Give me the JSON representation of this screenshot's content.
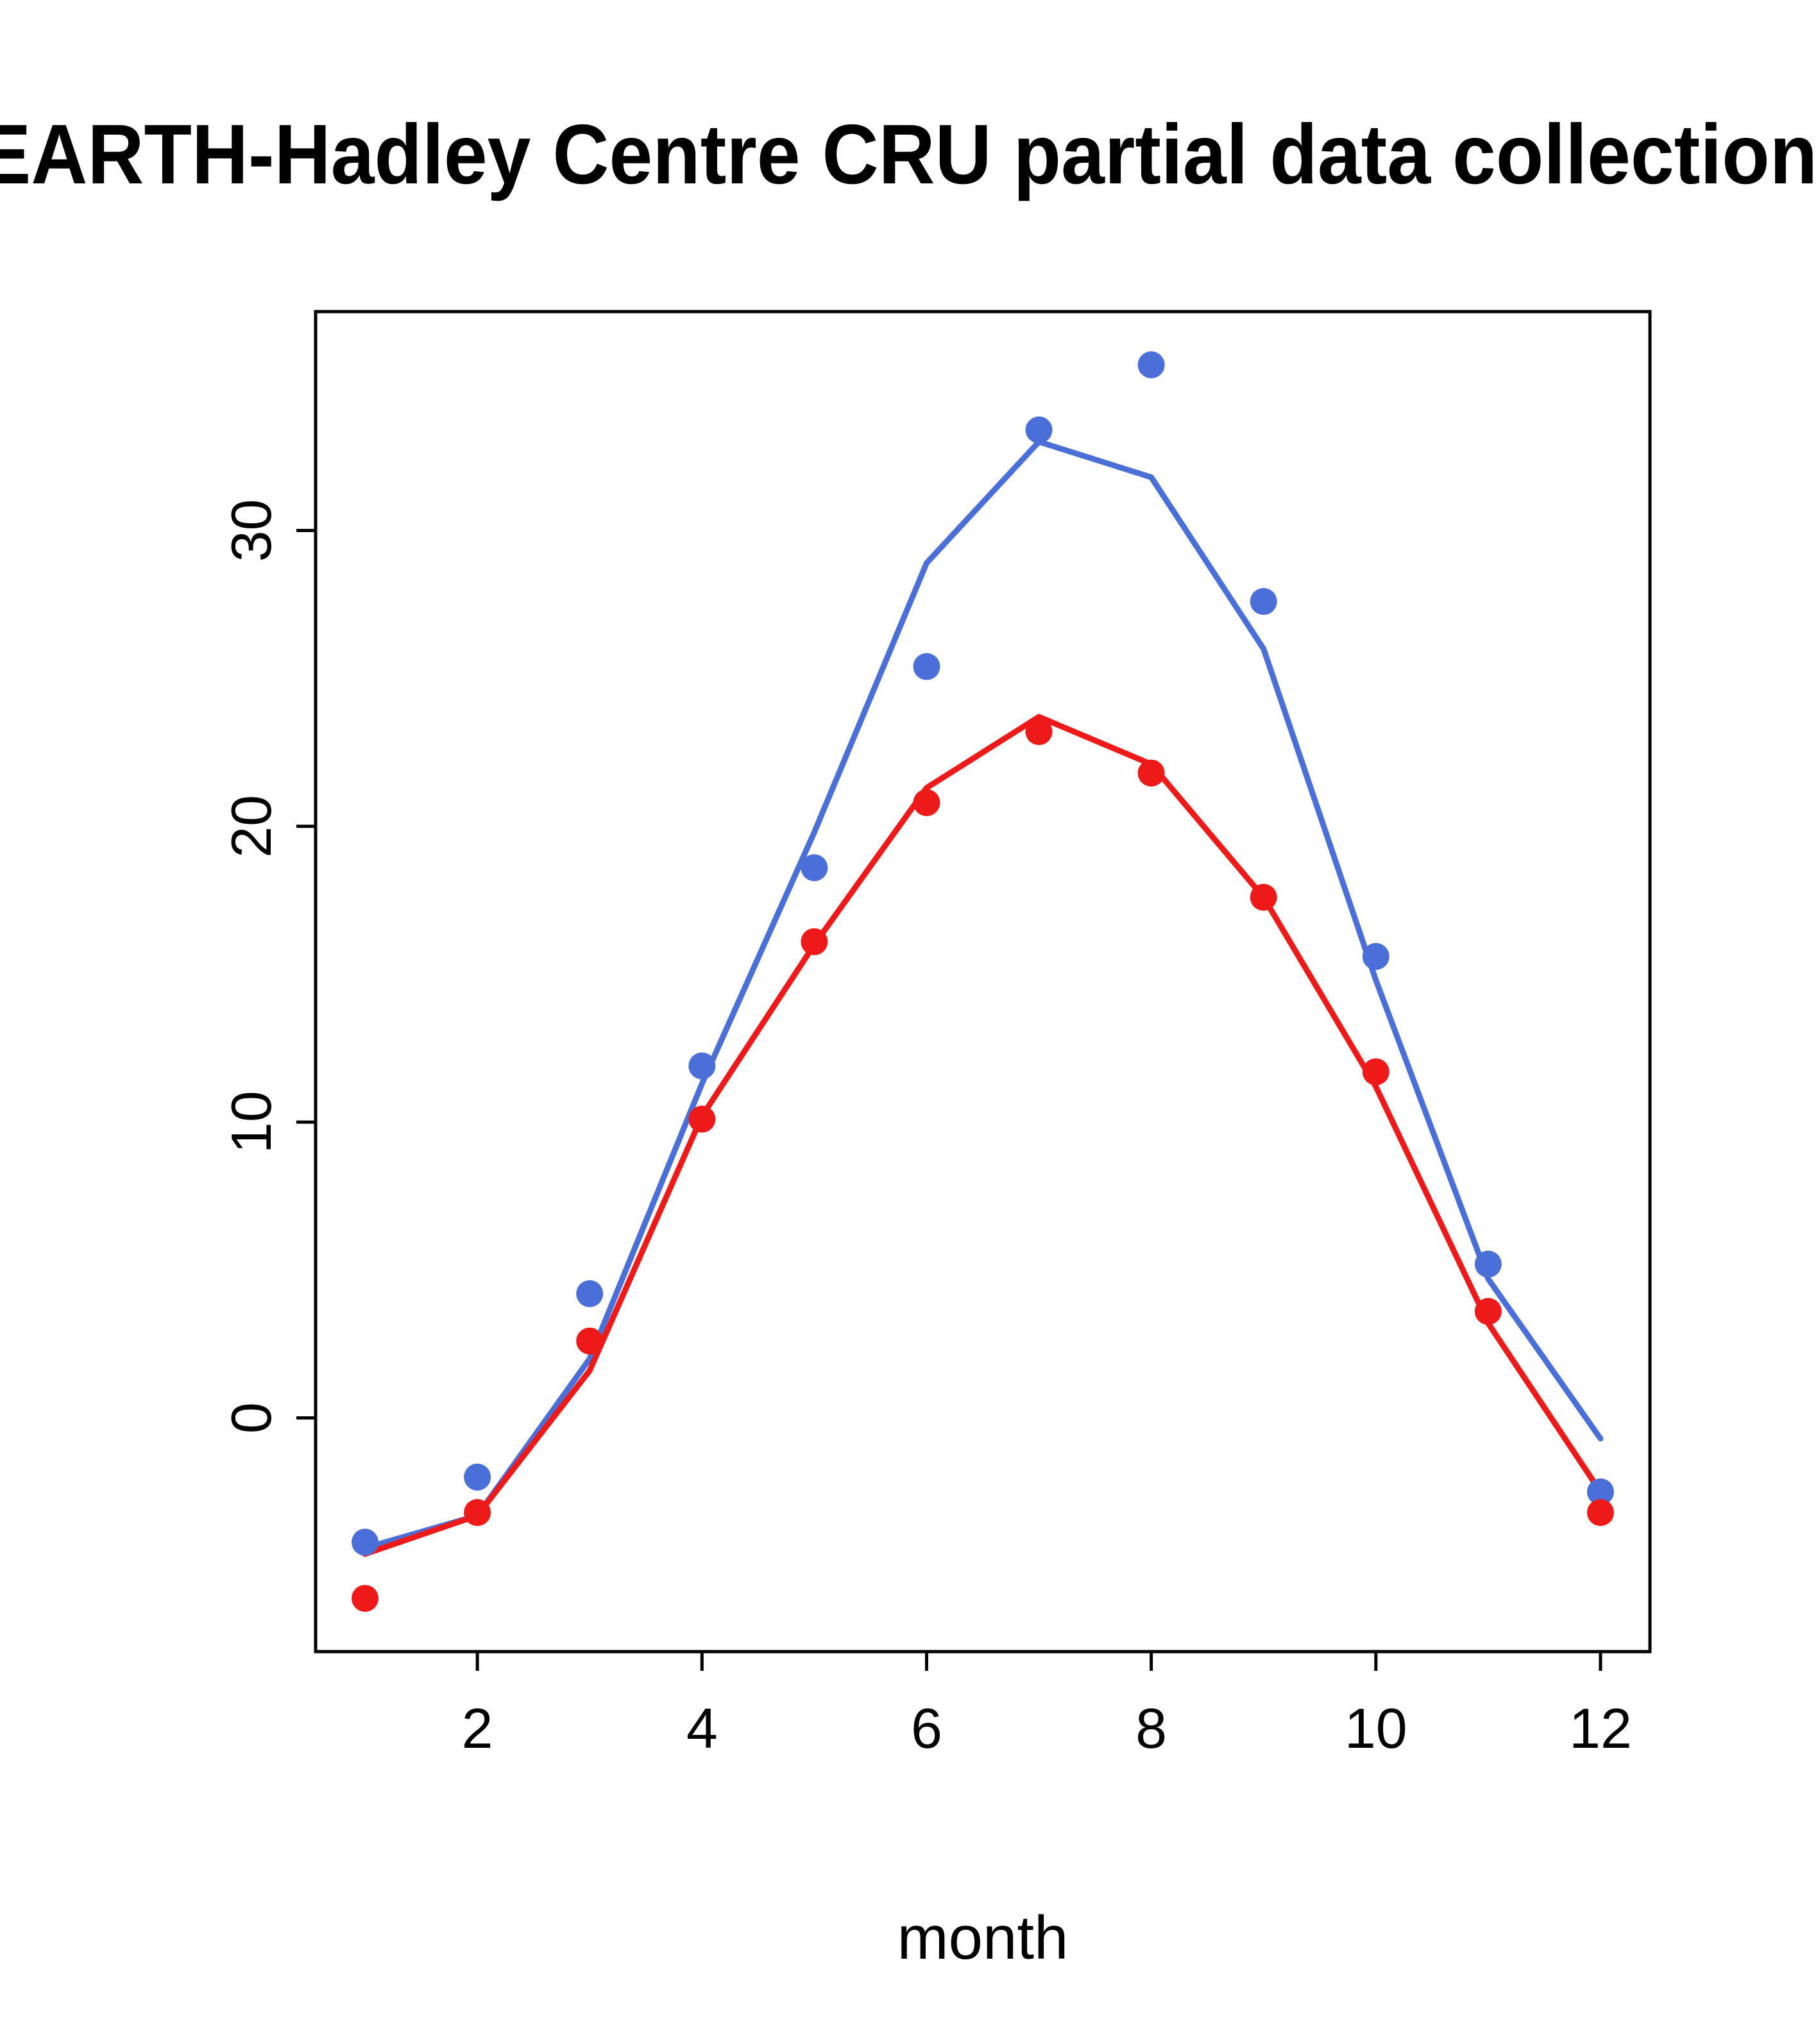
{
  "chart_data": {
    "type": "line",
    "title": "EARTH-Hadley Centre  CRU partial data collection,",
    "xlabel": "month",
    "ylabel": "",
    "xlim": [
      0.56,
      12.44
    ],
    "ylim": [
      -7.9,
      37.4
    ],
    "xticks": [
      2,
      4,
      6,
      8,
      10,
      12
    ],
    "yticks": [
      0,
      10,
      20,
      30
    ],
    "grid": false,
    "legend": "none",
    "x": [
      1,
      2,
      3,
      4,
      5,
      6,
      7,
      8,
      9,
      10,
      11,
      12
    ],
    "colors": {
      "blue": "#4a6fd8",
      "red": "#ee1a1a",
      "axis": "#000000"
    },
    "series": [
      {
        "name": "model-blue-line",
        "kind": "line",
        "color": "#4a6fd8",
        "values": [
          -4.4,
          -3.3,
          2.0,
          11.3,
          19.8,
          28.9,
          33.0,
          31.8,
          26.0,
          14.8,
          4.7,
          -0.7
        ]
      },
      {
        "name": "model-red-line",
        "kind": "line",
        "color": "#ee1a1a",
        "values": [
          -4.6,
          -3.3,
          1.6,
          10.2,
          16.0,
          21.3,
          23.7,
          22.1,
          17.6,
          11.2,
          3.2,
          -2.5
        ]
      },
      {
        "name": "obs-blue-points",
        "kind": "points",
        "color": "#4a6fd8",
        "values": [
          -4.2,
          -2.0,
          4.2,
          11.9,
          18.6,
          25.4,
          33.4,
          35.6,
          27.6,
          15.6,
          5.2,
          -2.5
        ]
      },
      {
        "name": "obs-red-points",
        "kind": "points",
        "color": "#ee1a1a",
        "values": [
          -6.1,
          -3.2,
          2.6,
          10.1,
          16.1,
          20.8,
          23.2,
          21.8,
          17.6,
          11.7,
          3.6,
          -3.2
        ]
      }
    ]
  }
}
